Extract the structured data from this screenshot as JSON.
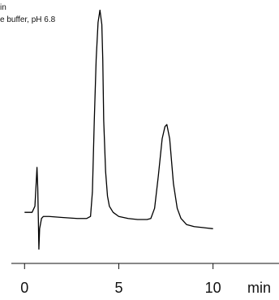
{
  "chart_data": {
    "type": "line",
    "title": "",
    "annotations": [
      "in",
      "e buffer, pH 6.8"
    ],
    "xlabel": "",
    "xunit": "min",
    "ylabel": "",
    "xlim": [
      -0.7,
      13.5
    ],
    "xticks": [
      0,
      5,
      10
    ],
    "xtick_labels": [
      "0",
      "5",
      "10"
    ],
    "ylim": [
      -0.25,
      1.0
    ],
    "grid": false,
    "legend": "none",
    "series": [
      {
        "color": "#000000",
        "x": [
          0.0,
          0.4,
          0.55,
          0.62,
          0.66,
          0.7,
          0.73,
          0.76,
          0.8,
          0.9,
          1.0,
          1.3,
          2.0,
          2.8,
          3.3,
          3.5,
          3.6,
          3.7,
          3.8,
          3.9,
          4.0,
          4.1,
          4.15,
          4.2,
          4.3,
          4.4,
          4.5,
          4.7,
          5.0,
          5.5,
          6.0,
          6.5,
          6.7,
          6.9,
          7.1,
          7.3,
          7.45,
          7.55,
          7.7,
          7.9,
          8.1,
          8.3,
          8.6,
          9.0,
          9.5,
          10.0
        ],
        "y": [
          0.0,
          0.0,
          0.03,
          0.15,
          0.22,
          0.12,
          -0.02,
          -0.18,
          -0.08,
          -0.03,
          -0.02,
          -0.02,
          -0.025,
          -0.03,
          -0.03,
          -0.02,
          0.1,
          0.45,
          0.75,
          0.93,
          0.99,
          0.92,
          0.75,
          0.45,
          0.2,
          0.08,
          0.03,
          0.0,
          -0.02,
          -0.03,
          -0.035,
          -0.035,
          -0.03,
          0.02,
          0.18,
          0.36,
          0.42,
          0.43,
          0.36,
          0.14,
          0.02,
          -0.03,
          -0.06,
          -0.07,
          -0.075,
          -0.08
        ]
      }
    ]
  }
}
